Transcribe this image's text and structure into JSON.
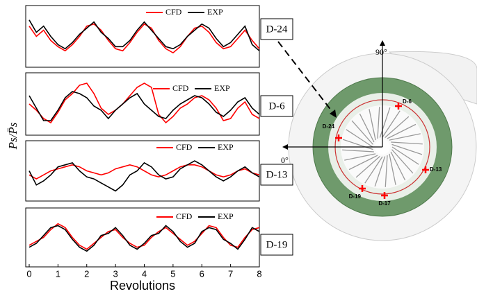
{
  "chart_data": [
    {
      "type": "line",
      "label": "D-24",
      "ylabel": "Ps/P̄s",
      "x": [
        0,
        0.25,
        0.5,
        0.75,
        1,
        1.25,
        1.5,
        1.75,
        2,
        2.25,
        2.5,
        2.75,
        3,
        3.25,
        3.5,
        3.75,
        4,
        4.25,
        4.5,
        4.75,
        5,
        5.25,
        5.5,
        5.75,
        6,
        6.25,
        6.5,
        6.75,
        7,
        7.25,
        7.5,
        7.75,
        8
      ],
      "xlim": [
        0,
        8
      ],
      "ylim": [
        0.85,
        1.15
      ],
      "series": [
        {
          "name": "CFD",
          "color": "#ff0000",
          "values": [
            1.05,
            1.0,
            1.03,
            0.98,
            0.95,
            0.93,
            0.96,
            1.0,
            1.05,
            1.06,
            1.03,
            0.98,
            0.94,
            0.93,
            0.97,
            1.02,
            1.06,
            1.04,
            0.98,
            0.94,
            0.92,
            0.95,
            1.0,
            1.04,
            1.05,
            1.02,
            0.97,
            0.94,
            0.95,
            0.99,
            1.03,
            0.98,
            0.94
          ]
        },
        {
          "name": "EXP",
          "color": "#000000",
          "values": [
            1.08,
            1.02,
            1.05,
            1.0,
            0.96,
            0.94,
            0.97,
            1.01,
            1.04,
            1.07,
            1.02,
            0.99,
            0.95,
            0.95,
            0.98,
            1.03,
            1.07,
            1.03,
            0.99,
            0.95,
            0.94,
            0.96,
            1.0,
            1.03,
            1.06,
            1.04,
            0.99,
            0.95,
            0.97,
            1.01,
            1.05,
            0.96,
            0.93
          ]
        }
      ]
    },
    {
      "type": "line",
      "label": "D-6",
      "x": [
        0,
        0.25,
        0.5,
        0.75,
        1,
        1.25,
        1.5,
        1.75,
        2,
        2.25,
        2.5,
        2.75,
        3,
        3.25,
        3.5,
        3.75,
        4,
        4.25,
        4.5,
        4.75,
        5,
        5.25,
        5.5,
        5.75,
        6,
        6.25,
        6.5,
        6.75,
        7,
        7.25,
        7.5,
        7.75,
        8
      ],
      "xlim": [
        0,
        8
      ],
      "ylim": [
        0.85,
        1.15
      ],
      "series": [
        {
          "name": "CFD",
          "color": "#ff0000",
          "values": [
            1.0,
            0.97,
            0.93,
            0.91,
            0.96,
            1.02,
            1.05,
            1.09,
            1.1,
            1.05,
            0.98,
            0.95,
            0.97,
            1.0,
            1.04,
            1.08,
            1.1,
            1.08,
            0.95,
            0.91,
            0.94,
            0.98,
            1.0,
            1.03,
            1.04,
            1.02,
            0.98,
            0.92,
            0.93,
            0.98,
            1.01,
            0.95,
            0.93
          ]
        },
        {
          "name": "EXP",
          "color": "#000000",
          "values": [
            1.04,
            0.98,
            0.92,
            0.92,
            0.97,
            1.03,
            1.06,
            1.05,
            1.03,
            0.99,
            0.97,
            0.93,
            0.97,
            1.0,
            1.03,
            1.05,
            1.0,
            0.97,
            0.94,
            0.93,
            0.97,
            1.0,
            1.02,
            1.04,
            1.03,
            1.0,
            0.96,
            0.94,
            0.97,
            1.01,
            1.03,
            0.98,
            0.95
          ]
        }
      ]
    },
    {
      "type": "line",
      "label": "D-13",
      "x": [
        0,
        0.25,
        0.5,
        0.75,
        1,
        1.25,
        1.5,
        1.75,
        2,
        2.25,
        2.5,
        2.75,
        3,
        3.25,
        3.5,
        3.75,
        4,
        4.25,
        4.5,
        4.75,
        5,
        5.25,
        5.5,
        5.75,
        6,
        6.25,
        6.5,
        6.75,
        7,
        7.25,
        7.5,
        7.75,
        8
      ],
      "xlim": [
        0,
        8
      ],
      "ylim": [
        0.85,
        1.15
      ],
      "series": [
        {
          "name": "CFD",
          "color": "#ff0000",
          "values": [
            0.98,
            0.96,
            0.98,
            1.0,
            1.01,
            1.02,
            1.03,
            1.02,
            1.0,
            0.99,
            0.98,
            0.99,
            1.01,
            1.02,
            1.03,
            1.02,
            1.0,
            0.98,
            0.97,
            0.98,
            1.0,
            1.02,
            1.03,
            1.03,
            1.02,
            1.0,
            0.98,
            0.97,
            0.98,
            1.0,
            1.01,
            0.99,
            0.98
          ]
        },
        {
          "name": "EXP",
          "color": "#000000",
          "values": [
            1.0,
            0.93,
            0.95,
            0.98,
            1.02,
            1.03,
            1.04,
            1.0,
            0.97,
            0.96,
            0.94,
            0.92,
            0.9,
            0.93,
            0.98,
            1.0,
            1.04,
            1.02,
            0.98,
            0.96,
            0.97,
            1.01,
            1.03,
            1.05,
            1.03,
            1.0,
            0.97,
            0.95,
            0.97,
            1.0,
            1.02,
            0.99,
            0.97
          ]
        }
      ]
    },
    {
      "type": "line",
      "label": "D-19",
      "xlabel": "Revolutions",
      "xticks": [
        0,
        1,
        2,
        3,
        4,
        5,
        6,
        7,
        8
      ],
      "x": [
        0,
        0.25,
        0.5,
        0.75,
        1,
        1.25,
        1.5,
        1.75,
        2,
        2.25,
        2.5,
        2.75,
        3,
        3.25,
        3.5,
        3.75,
        4,
        4.25,
        4.5,
        4.75,
        5,
        5.25,
        5.5,
        5.75,
        6,
        6.25,
        6.5,
        6.75,
        7,
        7.25,
        7.5,
        7.75,
        8
      ],
      "xlim": [
        0,
        8
      ],
      "ylim": [
        0.85,
        1.15
      ],
      "series": [
        {
          "name": "CFD",
          "color": "#ff0000",
          "values": [
            0.96,
            0.98,
            1.0,
            1.04,
            1.07,
            1.05,
            1.0,
            0.96,
            0.94,
            0.97,
            1.0,
            1.03,
            1.04,
            1.0,
            0.97,
            0.95,
            0.96,
            1.0,
            1.03,
            1.05,
            1.02,
            0.99,
            0.96,
            0.98,
            1.02,
            1.06,
            1.05,
            1.0,
            0.96,
            0.95,
            1.0,
            1.04,
            1.05
          ]
        },
        {
          "name": "EXP",
          "color": "#000000",
          "values": [
            0.95,
            0.97,
            1.01,
            1.05,
            1.06,
            1.04,
            0.99,
            0.95,
            0.93,
            0.96,
            1.01,
            1.02,
            1.05,
            1.01,
            0.96,
            0.94,
            0.97,
            1.01,
            1.02,
            1.06,
            1.03,
            0.98,
            0.95,
            0.97,
            1.03,
            1.05,
            1.04,
            0.99,
            0.97,
            0.94,
            0.99,
            1.05,
            1.03
          ]
        }
      ]
    }
  ],
  "diagram": {
    "angle_top": "90°",
    "angle_left": "0°",
    "probes": [
      {
        "label": "D-6"
      },
      {
        "label": "D-24"
      },
      {
        "label": "D-13"
      },
      {
        "label": "D-19"
      },
      {
        "label": "D-17"
      }
    ]
  }
}
